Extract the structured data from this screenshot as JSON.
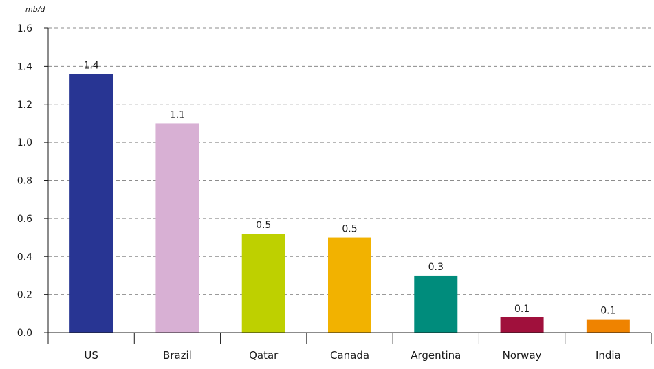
{
  "chart_data": {
    "type": "bar",
    "ylabel": "mb/d",
    "xlabel": "",
    "ylim": [
      0,
      1.6
    ],
    "yticks": [
      0.0,
      0.2,
      0.4,
      0.6,
      0.8,
      1.0,
      1.2,
      1.4,
      1.6
    ],
    "ytick_labels": [
      "0.0",
      "0.2",
      "0.4",
      "0.6",
      "0.8",
      "1.0",
      "1.2",
      "1.4",
      "1.6"
    ],
    "grid": "horizontal dashed",
    "categories": [
      "US",
      "Brazil",
      "Qatar",
      "Canada",
      "Argentina",
      "Norway",
      "India"
    ],
    "values": [
      1.36,
      1.1,
      0.52,
      0.5,
      0.3,
      0.08,
      0.07
    ],
    "data_labels": [
      "1.4",
      "1.1",
      "0.5",
      "0.5",
      "0.3",
      "0.1",
      "0.1"
    ],
    "colors": [
      "#283593",
      "#d8b0d4",
      "#bed000",
      "#f2b200",
      "#008c7c",
      "#a0103c",
      "#ef8300"
    ]
  }
}
